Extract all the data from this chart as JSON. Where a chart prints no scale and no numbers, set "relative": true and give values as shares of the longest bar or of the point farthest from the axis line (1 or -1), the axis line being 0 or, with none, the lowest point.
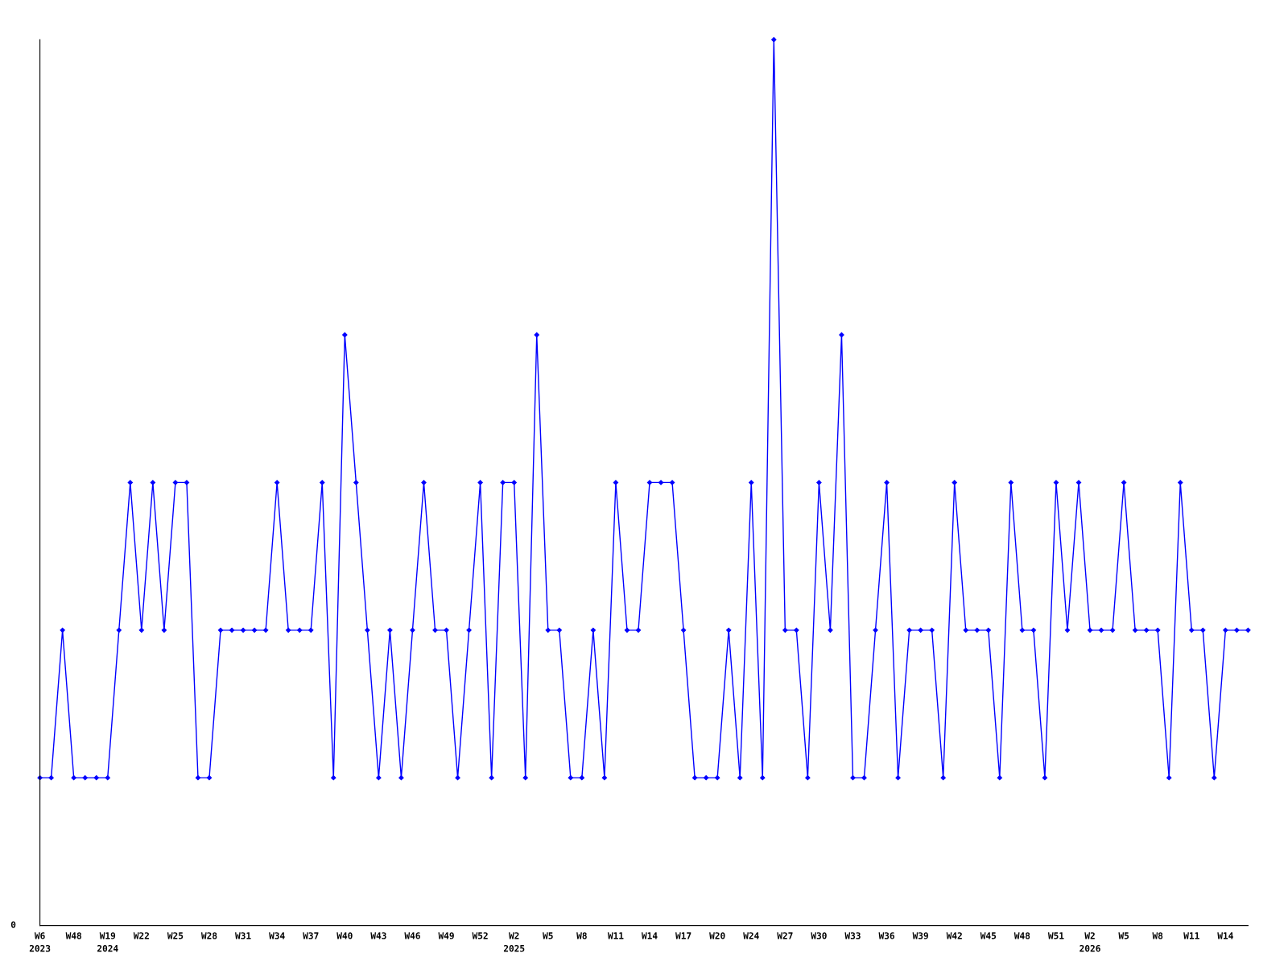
{
  "chart_data": {
    "type": "line",
    "relative": true,
    "color": "#0000ff",
    "marker": "diamond",
    "line_style": "solid",
    "grid": false,
    "legend": false,
    "annotations": [
      "0"
    ],
    "categories": [
      "W6\n2023",
      null,
      null,
      "W48",
      null,
      null,
      "W19\n2024",
      null,
      null,
      "W22",
      null,
      null,
      "W25",
      null,
      null,
      "W28",
      null,
      null,
      "W31",
      null,
      null,
      "W34",
      null,
      null,
      "W37",
      null,
      null,
      "W40",
      null,
      null,
      "W43",
      null,
      null,
      "W46",
      null,
      null,
      "W49",
      null,
      null,
      "W52",
      null,
      null,
      "W2\n2025",
      null,
      null,
      "W5",
      null,
      null,
      "W8",
      null,
      null,
      "W11",
      null,
      null,
      "W14",
      null,
      null,
      "W17",
      null,
      null,
      "W20",
      null,
      null,
      "W24",
      null,
      null,
      "W27",
      null,
      null,
      "W30",
      null,
      null,
      "W33",
      null,
      null,
      "W36",
      null,
      null,
      "W39",
      null,
      null,
      "W42",
      null,
      null,
      "W45",
      null,
      null,
      "W48",
      null,
      null,
      "W51",
      null,
      null,
      "W2\n2026",
      null,
      null,
      "W5",
      null,
      null,
      "W8",
      null,
      null,
      "W11",
      null,
      null,
      "W14",
      null,
      null
    ],
    "values": [
      0.1667,
      0.1667,
      0.3333,
      0.1667,
      0.1667,
      0.1667,
      0.1667,
      0.3333,
      0.5,
      0.3333,
      0.5,
      0.3333,
      0.5,
      0.5,
      0.1667,
      0.1667,
      0.3333,
      0.3333,
      0.3333,
      0.3333,
      0.3333,
      0.5,
      0.3333,
      0.3333,
      0.3333,
      0.5,
      0.1667,
      0.6667,
      0.5,
      0.3333,
      0.1667,
      0.3333,
      0.1667,
      0.3333,
      0.5,
      0.3333,
      0.3333,
      0.1667,
      0.3333,
      0.5,
      0.1667,
      0.5,
      0.5,
      0.1667,
      0.6667,
      0.3333,
      0.3333,
      0.1667,
      0.1667,
      0.3333,
      0.1667,
      0.5,
      0.3333,
      0.3333,
      0.5,
      0.5,
      0.5,
      0.3333,
      0.1667,
      0.1667,
      0.1667,
      0.3333,
      0.1667,
      0.5,
      0.1667,
      1,
      0.3333,
      0.3333,
      0.1667,
      0.5,
      0.3333,
      0.6667,
      0.1667,
      0.1667,
      0.3333,
      0.5,
      0.1667,
      0.3333,
      0.3333,
      0.3333,
      0.1667,
      0.5,
      0.3333,
      0.3333,
      0.3333,
      0.1667,
      0.5,
      0.3333,
      0.3333,
      0.1667,
      0.5,
      0.3333,
      0.5,
      0.3333,
      0.3333,
      0.3333,
      0.5,
      0.3333,
      0.3333,
      0.3333,
      0.1667,
      0.5,
      0.3333,
      0.3333,
      0.1667,
      0.3333,
      0.3333,
      0.3333
    ]
  }
}
